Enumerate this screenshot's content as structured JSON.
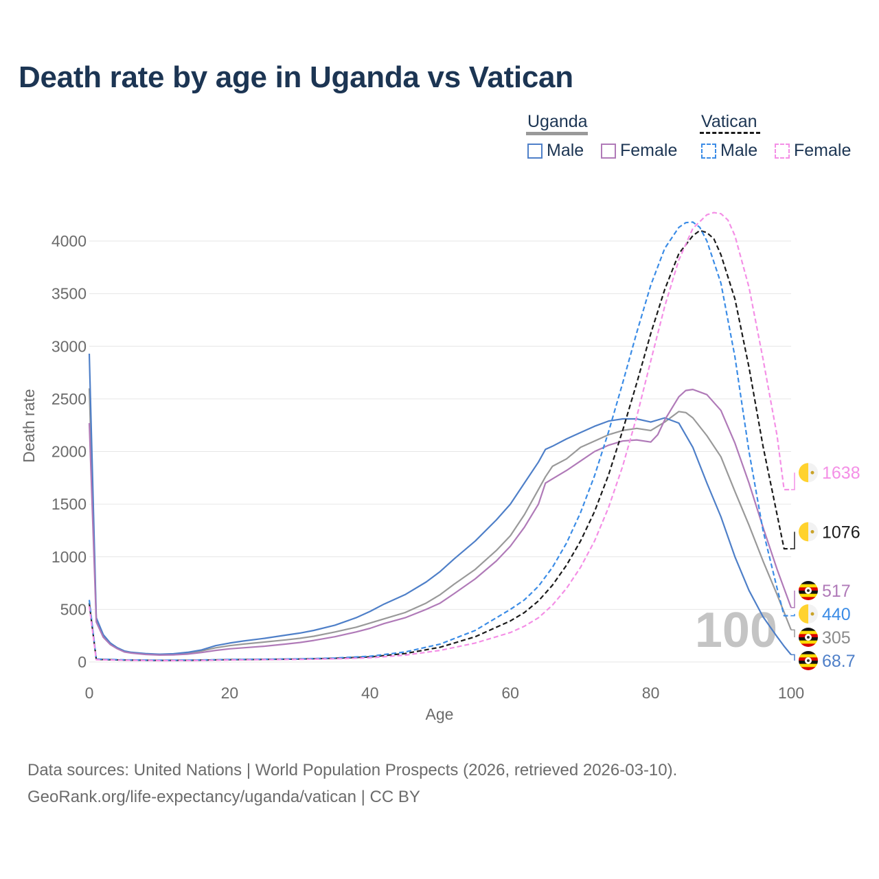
{
  "title": "Death rate by age in Uganda vs Vatican",
  "legend": {
    "groups": [
      {
        "name": "Uganda",
        "underline_color": "#999999",
        "dashed": false
      },
      {
        "name": "Vatican",
        "underline_color": "#1a1a1a",
        "dashed": true
      }
    ],
    "items": [
      {
        "label": "Male",
        "color": "#4e7fc8",
        "dashed": false
      },
      {
        "label": "Female",
        "color": "#b07ab8",
        "dashed": false
      },
      {
        "label": "Male",
        "color": "#3b8ce6",
        "dashed": true
      },
      {
        "label": "Female",
        "color": "#f48fe6",
        "dashed": true
      }
    ]
  },
  "watermark_year": "100",
  "footer": {
    "line1": "Data sources: United Nations | World Population Prospects (2026, retrieved 2026-03-10).",
    "line2": "GeoRank.org/life-expectancy/uganda/vatican | CC BY"
  },
  "chart_data": {
    "type": "line",
    "title": "Death rate by age in Uganda vs Vatican",
    "xlabel": "Age",
    "ylabel": "Death rate",
    "xlim": [
      0,
      100
    ],
    "ylim": [
      0,
      4300
    ],
    "xticks": [
      0,
      20,
      40,
      60,
      80,
      100
    ],
    "yticks": [
      0,
      500,
      1000,
      1500,
      2000,
      2500,
      3000,
      3500,
      4000
    ],
    "grid": true,
    "series": [
      {
        "name": "Uganda Total",
        "country": "Uganda",
        "sex": "Total",
        "color": "#999999",
        "dashed": false,
        "end_label": "305",
        "points": [
          [
            0,
            2600
          ],
          [
            1,
            400
          ],
          [
            2,
            250
          ],
          [
            3,
            180
          ],
          [
            4,
            130
          ],
          [
            5,
            100
          ],
          [
            6,
            90
          ],
          [
            8,
            78
          ],
          [
            10,
            72
          ],
          [
            12,
            74
          ],
          [
            14,
            85
          ],
          [
            16,
            105
          ],
          [
            18,
            135
          ],
          [
            20,
            155
          ],
          [
            22,
            170
          ],
          [
            25,
            190
          ],
          [
            28,
            210
          ],
          [
            30,
            225
          ],
          [
            32,
            245
          ],
          [
            35,
            285
          ],
          [
            38,
            330
          ],
          [
            40,
            370
          ],
          [
            42,
            410
          ],
          [
            45,
            470
          ],
          [
            48,
            560
          ],
          [
            50,
            640
          ],
          [
            52,
            740
          ],
          [
            55,
            880
          ],
          [
            58,
            1060
          ],
          [
            60,
            1200
          ],
          [
            62,
            1400
          ],
          [
            64,
            1640
          ],
          [
            65,
            1760
          ],
          [
            66,
            1860
          ],
          [
            68,
            1930
          ],
          [
            70,
            2040
          ],
          [
            72,
            2100
          ],
          [
            74,
            2160
          ],
          [
            76,
            2200
          ],
          [
            78,
            2220
          ],
          [
            80,
            2200
          ],
          [
            82,
            2280
          ],
          [
            84,
            2380
          ],
          [
            85,
            2370
          ],
          [
            86,
            2320
          ],
          [
            88,
            2150
          ],
          [
            90,
            1950
          ],
          [
            92,
            1620
          ],
          [
            94,
            1300
          ],
          [
            96,
            960
          ],
          [
            98,
            640
          ],
          [
            100,
            305
          ]
        ]
      },
      {
        "name": "Uganda Male",
        "country": "Uganda",
        "sex": "Male",
        "color": "#4e7fc8",
        "dashed": false,
        "end_label": "68.7",
        "points": [
          [
            0,
            2930
          ],
          [
            1,
            420
          ],
          [
            2,
            260
          ],
          [
            3,
            180
          ],
          [
            4,
            135
          ],
          [
            5,
            105
          ],
          [
            6,
            92
          ],
          [
            8,
            80
          ],
          [
            10,
            74
          ],
          [
            12,
            78
          ],
          [
            14,
            92
          ],
          [
            16,
            115
          ],
          [
            18,
            155
          ],
          [
            20,
            180
          ],
          [
            22,
            200
          ],
          [
            25,
            225
          ],
          [
            28,
            255
          ],
          [
            30,
            275
          ],
          [
            32,
            300
          ],
          [
            35,
            350
          ],
          [
            38,
            420
          ],
          [
            40,
            480
          ],
          [
            42,
            550
          ],
          [
            45,
            640
          ],
          [
            48,
            760
          ],
          [
            50,
            860
          ],
          [
            52,
            980
          ],
          [
            55,
            1150
          ],
          [
            58,
            1350
          ],
          [
            60,
            1500
          ],
          [
            62,
            1700
          ],
          [
            64,
            1900
          ],
          [
            65,
            2020
          ],
          [
            66,
            2050
          ],
          [
            68,
            2120
          ],
          [
            70,
            2180
          ],
          [
            72,
            2240
          ],
          [
            74,
            2290
          ],
          [
            76,
            2310
          ],
          [
            78,
            2310
          ],
          [
            80,
            2280
          ],
          [
            82,
            2320
          ],
          [
            84,
            2270
          ],
          [
            86,
            2040
          ],
          [
            88,
            1700
          ],
          [
            90,
            1380
          ],
          [
            92,
            1000
          ],
          [
            94,
            680
          ],
          [
            96,
            430
          ],
          [
            98,
            240
          ],
          [
            99,
            150
          ],
          [
            100,
            69
          ]
        ]
      },
      {
        "name": "Uganda Female",
        "country": "Uganda",
        "sex": "Female",
        "color": "#b07ab8",
        "dashed": false,
        "end_label": "517",
        "points": [
          [
            0,
            2270
          ],
          [
            1,
            380
          ],
          [
            2,
            235
          ],
          [
            3,
            165
          ],
          [
            4,
            125
          ],
          [
            5,
            95
          ],
          [
            6,
            85
          ],
          [
            8,
            72
          ],
          [
            10,
            66
          ],
          [
            12,
            68
          ],
          [
            14,
            75
          ],
          [
            16,
            90
          ],
          [
            18,
            110
          ],
          [
            20,
            125
          ],
          [
            22,
            135
          ],
          [
            25,
            150
          ],
          [
            28,
            170
          ],
          [
            30,
            185
          ],
          [
            32,
            205
          ],
          [
            35,
            240
          ],
          [
            38,
            285
          ],
          [
            40,
            320
          ],
          [
            42,
            365
          ],
          [
            45,
            420
          ],
          [
            48,
            500
          ],
          [
            50,
            560
          ],
          [
            52,
            650
          ],
          [
            55,
            790
          ],
          [
            58,
            960
          ],
          [
            60,
            1100
          ],
          [
            62,
            1280
          ],
          [
            64,
            1500
          ],
          [
            65,
            1700
          ],
          [
            66,
            1740
          ],
          [
            68,
            1820
          ],
          [
            70,
            1910
          ],
          [
            72,
            2000
          ],
          [
            74,
            2060
          ],
          [
            76,
            2100
          ],
          [
            78,
            2110
          ],
          [
            80,
            2090
          ],
          [
            81,
            2160
          ],
          [
            82,
            2300
          ],
          [
            84,
            2520
          ],
          [
            85,
            2580
          ],
          [
            86,
            2590
          ],
          [
            88,
            2540
          ],
          [
            90,
            2390
          ],
          [
            92,
            2080
          ],
          [
            94,
            1700
          ],
          [
            96,
            1280
          ],
          [
            98,
            880
          ],
          [
            100,
            517
          ]
        ]
      },
      {
        "name": "Vatican Total",
        "country": "Vatican",
        "sex": "Total",
        "color": "#1a1a1a",
        "dashed": true,
        "end_label": "1076",
        "points": [
          [
            0,
            560
          ],
          [
            1,
            25
          ],
          [
            5,
            18
          ],
          [
            10,
            15
          ],
          [
            15,
            16
          ],
          [
            20,
            22
          ],
          [
            25,
            25
          ],
          [
            30,
            28
          ],
          [
            35,
            35
          ],
          [
            40,
            48
          ],
          [
            45,
            80
          ],
          [
            50,
            140
          ],
          [
            55,
            240
          ],
          [
            60,
            390
          ],
          [
            62,
            470
          ],
          [
            64,
            580
          ],
          [
            66,
            730
          ],
          [
            68,
            920
          ],
          [
            70,
            1150
          ],
          [
            72,
            1430
          ],
          [
            74,
            1780
          ],
          [
            76,
            2200
          ],
          [
            78,
            2650
          ],
          [
            80,
            3120
          ],
          [
            82,
            3540
          ],
          [
            84,
            3880
          ],
          [
            86,
            4050
          ],
          [
            87,
            4100
          ],
          [
            88,
            4080
          ],
          [
            89,
            4020
          ],
          [
            90,
            3870
          ],
          [
            92,
            3450
          ],
          [
            94,
            2800
          ],
          [
            96,
            2050
          ],
          [
            98,
            1400
          ],
          [
            99,
            1076
          ],
          [
            100,
            1076
          ]
        ]
      },
      {
        "name": "Vatican Male",
        "country": "Vatican",
        "sex": "Male",
        "color": "#3b8ce6",
        "dashed": true,
        "end_label": "440",
        "points": [
          [
            0,
            590
          ],
          [
            1,
            28
          ],
          [
            5,
            20
          ],
          [
            10,
            17
          ],
          [
            15,
            18
          ],
          [
            20,
            24
          ],
          [
            25,
            27
          ],
          [
            30,
            30
          ],
          [
            35,
            38
          ],
          [
            40,
            55
          ],
          [
            45,
            95
          ],
          [
            50,
            170
          ],
          [
            55,
            300
          ],
          [
            60,
            500
          ],
          [
            62,
            590
          ],
          [
            64,
            720
          ],
          [
            66,
            900
          ],
          [
            68,
            1130
          ],
          [
            70,
            1420
          ],
          [
            72,
            1770
          ],
          [
            74,
            2190
          ],
          [
            76,
            2650
          ],
          [
            78,
            3130
          ],
          [
            80,
            3580
          ],
          [
            82,
            3930
          ],
          [
            84,
            4130
          ],
          [
            85,
            4175
          ],
          [
            86,
            4180
          ],
          [
            87,
            4130
          ],
          [
            88,
            4000
          ],
          [
            90,
            3600
          ],
          [
            92,
            2900
          ],
          [
            94,
            2000
          ],
          [
            96,
            1250
          ],
          [
            98,
            700
          ],
          [
            99,
            440
          ],
          [
            100,
            440
          ]
        ]
      },
      {
        "name": "Vatican Female",
        "country": "Vatican",
        "sex": "Female",
        "color": "#f48fe6",
        "dashed": true,
        "end_label": "1638",
        "points": [
          [
            0,
            530
          ],
          [
            1,
            22
          ],
          [
            5,
            16
          ],
          [
            10,
            13
          ],
          [
            15,
            14
          ],
          [
            20,
            19
          ],
          [
            25,
            22
          ],
          [
            30,
            25
          ],
          [
            35,
            30
          ],
          [
            40,
            40
          ],
          [
            45,
            65
          ],
          [
            50,
            110
          ],
          [
            55,
            180
          ],
          [
            60,
            280
          ],
          [
            62,
            340
          ],
          [
            64,
            420
          ],
          [
            66,
            540
          ],
          [
            68,
            700
          ],
          [
            70,
            900
          ],
          [
            72,
            1150
          ],
          [
            74,
            1470
          ],
          [
            76,
            1860
          ],
          [
            78,
            2330
          ],
          [
            80,
            2860
          ],
          [
            82,
            3380
          ],
          [
            84,
            3820
          ],
          [
            86,
            4120
          ],
          [
            88,
            4250
          ],
          [
            89,
            4270
          ],
          [
            90,
            4260
          ],
          [
            91,
            4200
          ],
          [
            92,
            4050
          ],
          [
            94,
            3560
          ],
          [
            96,
            2880
          ],
          [
            98,
            2150
          ],
          [
            99,
            1638
          ],
          [
            100,
            1638
          ]
        ]
      }
    ]
  }
}
